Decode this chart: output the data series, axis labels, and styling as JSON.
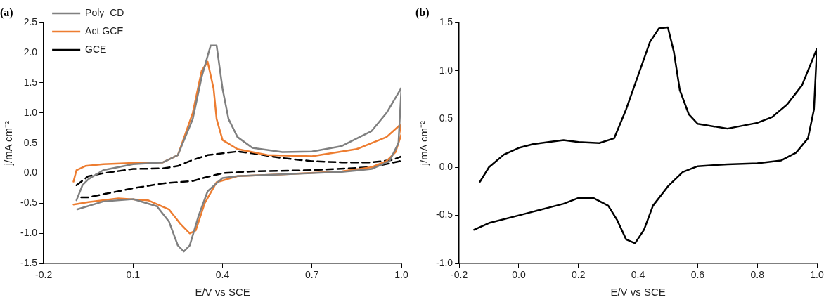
{
  "chart_data": [
    {
      "type": "line",
      "title": "(a)",
      "xlabel": "E/V vs SCE",
      "ylabel": "j/mA cm⁻²",
      "xlim": [
        -0.2,
        1.0
      ],
      "xticks": [
        {
          "value": -0.2,
          "label": "-0.2"
        },
        {
          "value": 0.1,
          "label": "0.1"
        },
        {
          "value": 0.4,
          "label": "0.4"
        },
        {
          "value": 0.7,
          "label": "0.7"
        },
        {
          "value": 1.0,
          "label": "1.0"
        }
      ],
      "ylim": [
        -1.5,
        2.5
      ],
      "yticks": [
        {
          "value": -1.5,
          "label": "-1.5"
        },
        {
          "value": -1.0,
          "label": "-1.0"
        },
        {
          "value": -0.5,
          "label": "-0.5"
        },
        {
          "value": 0,
          "label": "0.0"
        },
        {
          "value": 0.5,
          "label": "0.5"
        },
        {
          "value": 1.0,
          "label": "1.0"
        },
        {
          "value": 1.5,
          "label": "1.5"
        },
        {
          "value": 2.0,
          "label": "2.0"
        },
        {
          "value": 2.5,
          "label": "2.5"
        }
      ],
      "legend": "top left",
      "marker": "none",
      "series": [
        {
          "name": "Poly  CD",
          "color": "#808080",
          "line_style": "solid",
          "x": [
            -0.09,
            -0.07,
            -0.05,
            0,
            0.1,
            0.2,
            0.25,
            0.3,
            0.33,
            0.36,
            0.38,
            0.4,
            0.42,
            0.45,
            0.5,
            0.6,
            0.7,
            0.8,
            0.9,
            0.95,
            1.0,
            0.99,
            0.96,
            0.9,
            0.8,
            0.6,
            0.45,
            0.4,
            0.35,
            0.32,
            0.29,
            0.27,
            0.25,
            0.22,
            0.18,
            0.1,
            0,
            -0.087
          ],
          "values": [
            -0.45,
            -0.2,
            -0.1,
            0.05,
            0.15,
            0.18,
            0.3,
            0.9,
            1.6,
            2.12,
            2.12,
            1.4,
            0.9,
            0.6,
            0.42,
            0.35,
            0.36,
            0.45,
            0.7,
            1.0,
            1.42,
            0.5,
            0.2,
            0.07,
            0.02,
            -0.02,
            -0.05,
            -0.08,
            -0.3,
            -0.7,
            -1.2,
            -1.3,
            -1.2,
            -0.8,
            -0.55,
            -0.43,
            -0.47,
            -0.6
          ]
        },
        {
          "name": "Act GCE",
          "color": "#ed7d31",
          "line_style": "solid",
          "x": [
            -0.1,
            -0.09,
            -0.06,
            0,
            0.1,
            0.2,
            0.25,
            0.3,
            0.33,
            0.35,
            0.37,
            0.38,
            0.4,
            0.45,
            0.55,
            0.7,
            0.85,
            0.95,
            0.995,
            1.0,
            0.98,
            0.95,
            0.9,
            0.8,
            0.6,
            0.45,
            0.38,
            0.34,
            0.31,
            0.29,
            0.26,
            0.22,
            0.15,
            0.05,
            -0.05,
            -0.1
          ],
          "values": [
            -0.14,
            0.05,
            0.12,
            0.15,
            0.17,
            0.18,
            0.3,
            1.0,
            1.7,
            1.85,
            1.4,
            0.9,
            0.55,
            0.4,
            0.3,
            0.28,
            0.4,
            0.6,
            0.8,
            0.65,
            0.35,
            0.2,
            0.1,
            0.03,
            -0.02,
            -0.05,
            -0.15,
            -0.5,
            -0.95,
            -1.0,
            -0.85,
            -0.6,
            -0.45,
            -0.42,
            -0.48,
            -0.52
          ]
        },
        {
          "name": "GCE",
          "color": "#000000",
          "line_style": "dashed",
          "x": [
            -0.09,
            -0.05,
            0,
            0.1,
            0.2,
            0.25,
            0.3,
            0.35,
            0.4,
            0.45,
            0.5,
            0.6,
            0.7,
            0.8,
            0.9,
            0.97,
            1.0,
            0.995,
            0.9,
            0.7,
            0.5,
            0.4,
            0.35,
            0.3,
            0.2,
            0.1,
            0,
            -0.05,
            -0.087
          ],
          "values": [
            -0.2,
            -0.05,
            0,
            0.07,
            0.08,
            0.12,
            0.22,
            0.3,
            0.33,
            0.36,
            0.33,
            0.25,
            0.2,
            0.18,
            0.18,
            0.22,
            0.28,
            0.2,
            0.1,
            0.05,
            0.03,
            0,
            -0.06,
            -0.13,
            -0.17,
            -0.25,
            -0.35,
            -0.4,
            -0.4
          ]
        }
      ]
    },
    {
      "type": "line",
      "title": "(b)",
      "xlabel": "E/V vs SCE",
      "ylabel": "j/mA cm⁻²",
      "xlim": [
        -0.2,
        1.0
      ],
      "xticks": [
        {
          "value": -0.2,
          "label": "-0.2"
        },
        {
          "value": 0,
          "label": "0.0"
        },
        {
          "value": 0.2,
          "label": "0.2"
        },
        {
          "value": 0.4,
          "label": "0.4"
        },
        {
          "value": 0.6,
          "label": "0.6"
        },
        {
          "value": 0.8,
          "label": "0.8"
        },
        {
          "value": 1.0,
          "label": "1.0"
        }
      ],
      "ylim": [
        -1.0,
        1.5
      ],
      "yticks": [
        {
          "value": -1.0,
          "label": "-1.0"
        },
        {
          "value": -0.5,
          "label": "-0.5"
        },
        {
          "value": 0,
          "label": "0.0"
        },
        {
          "value": 0.5,
          "label": "0.5"
        },
        {
          "value": 1.0,
          "label": "1.0"
        },
        {
          "value": 1.5,
          "label": "1.5"
        }
      ],
      "marker": "none",
      "series": [
        {
          "color": "#000000",
          "line_style": "solid",
          "x": [
            -0.13,
            -0.1,
            -0.05,
            0,
            0.05,
            0.1,
            0.15,
            0.2,
            0.27,
            0.32,
            0.36,
            0.4,
            0.44,
            0.47,
            0.5,
            0.52,
            0.54,
            0.57,
            0.6,
            0.7,
            0.8,
            0.85,
            0.9,
            0.95,
            1.0,
            0.99,
            0.97,
            0.93,
            0.88,
            0.8,
            0.7,
            0.6,
            0.55,
            0.5,
            0.45,
            0.42,
            0.39,
            0.36,
            0.33,
            0.3,
            0.25,
            0.2,
            0.15,
            0.1,
            0.05,
            0,
            -0.1,
            -0.15
          ],
          "values": [
            -0.15,
            0,
            0.13,
            0.2,
            0.24,
            0.26,
            0.28,
            0.26,
            0.25,
            0.3,
            0.6,
            0.95,
            1.3,
            1.44,
            1.45,
            1.2,
            0.8,
            0.55,
            0.45,
            0.4,
            0.46,
            0.52,
            0.65,
            0.85,
            1.23,
            0.6,
            0.3,
            0.15,
            0.07,
            0.04,
            0.03,
            0.01,
            -0.05,
            -0.2,
            -0.4,
            -0.65,
            -0.79,
            -0.75,
            -0.55,
            -0.4,
            -0.32,
            -0.32,
            -0.38,
            -0.42,
            -0.46,
            -0.5,
            -0.58,
            -0.65
          ]
        }
      ]
    }
  ]
}
